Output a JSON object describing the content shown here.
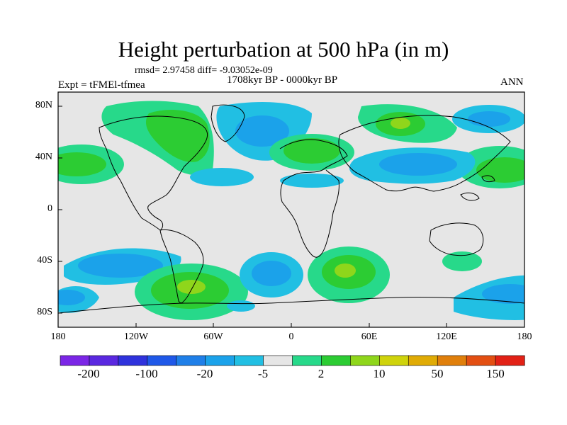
{
  "title": "Height perturbation at 500 hPa (in m)",
  "stats_line": "rmsd= 2.97458 diff= -9.03052e-09",
  "period": "1708kyr BP - 0000kyr BP",
  "experiment": "Expt = tFMEl-tfmea",
  "season": "ANN",
  "lat_labels": [
    "80N",
    "40N",
    "0",
    "40S",
    "80S"
  ],
  "lon_labels": [
    "180",
    "120W",
    "60W",
    "0",
    "60E",
    "120E",
    "180"
  ],
  "colorbar": {
    "labels": [
      "-200",
      "-100",
      "-20",
      "-5",
      "2",
      "10",
      "50",
      "150"
    ],
    "colors": [
      "#7b26e6",
      "#5a28e0",
      "#2f32dc",
      "#1f58e8",
      "#1f7fe8",
      "#1ba2ea",
      "#21bfe3",
      "#e6e6e6",
      "#27d98a",
      "#2ccc33",
      "#8fd61b",
      "#cfd30b",
      "#e0ab05",
      "#e07f0b",
      "#e34f12",
      "#e22116"
    ]
  },
  "map_colors": {
    "background": "#e6e6e6",
    "light_blue": "#21bfe3",
    "blue": "#1ba2ea",
    "teal_green": "#27d98a",
    "green": "#2ccc33",
    "yellow_green": "#8fd61b",
    "coastline": "#000000"
  }
}
